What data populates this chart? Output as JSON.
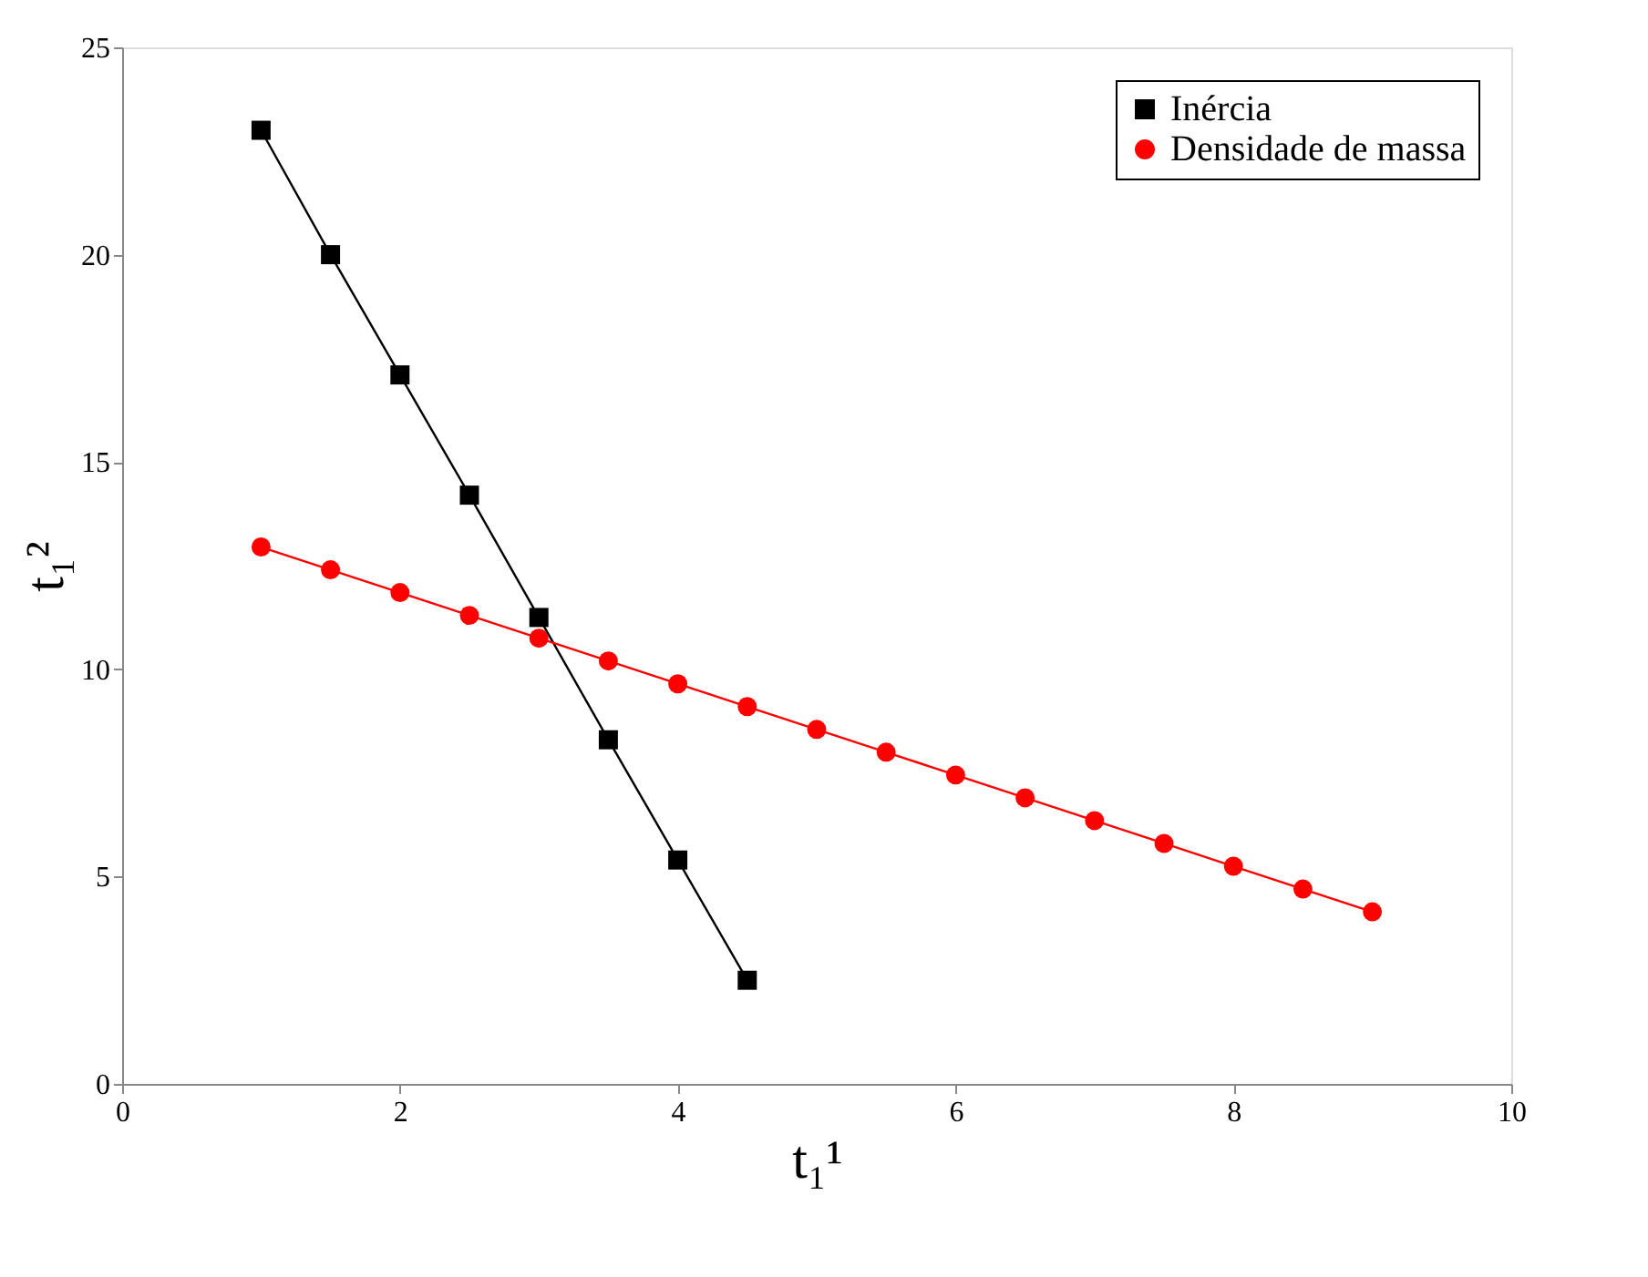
{
  "chart_data": {
    "type": "line",
    "xlabel": "t₁¹",
    "ylabel": "t₁²",
    "xlim": [
      0,
      10
    ],
    "xticks": [
      0,
      2,
      4,
      6,
      8,
      10
    ],
    "ylim": [
      0,
      25
    ],
    "yticks": [
      0,
      5,
      10,
      15,
      20,
      25
    ],
    "grid": false,
    "legend": "top right",
    "line_style": "solid",
    "series": [
      {
        "name": "Inércia",
        "color": "#000000",
        "marker": "square",
        "x": [
          1,
          1.5,
          2,
          2.5,
          3,
          3.5,
          4,
          4.5
        ],
        "values": [
          23.0,
          20.0,
          17.1,
          14.2,
          11.25,
          8.3,
          5.4,
          2.5
        ]
      },
      {
        "name": "Densidade de massa",
        "color": "#ff0000",
        "marker": "circle",
        "x": [
          1,
          1.5,
          2,
          2.5,
          3,
          3.5,
          4,
          4.5,
          5,
          5.5,
          6,
          6.5,
          7,
          7.5,
          8,
          8.5,
          9
        ],
        "values": [
          12.95,
          12.4,
          11.85,
          11.3,
          10.75,
          10.2,
          9.65,
          9.1,
          8.55,
          8.0,
          7.45,
          6.9,
          6.35,
          5.8,
          5.25,
          4.7,
          4.15
        ]
      }
    ]
  }
}
